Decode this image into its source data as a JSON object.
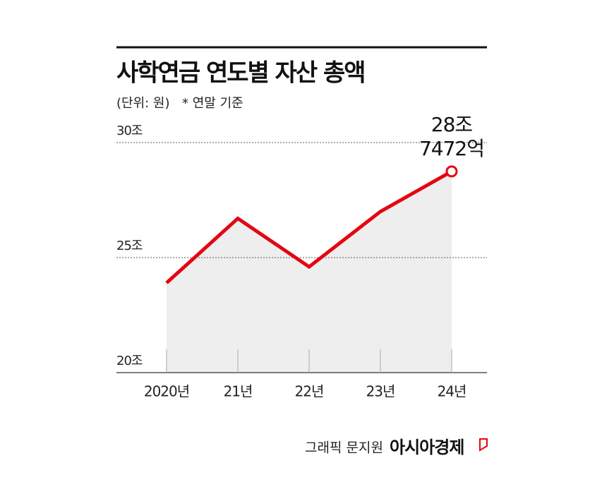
{
  "chart_data": {
    "type": "line",
    "title": "사학연금 연도별 자산 총액",
    "subtitle": "(단위: 원)",
    "note": "* 연말 기준",
    "categories": [
      "2020년",
      "21년",
      "22년",
      "23년",
      "24년"
    ],
    "values": [
      23.9,
      26.7,
      24.6,
      27.0,
      28.7472
    ],
    "value_labels": [
      null,
      null,
      null,
      null,
      "28조\n7472억"
    ],
    "color": "#e30613",
    "area_color": "#eeeeee",
    "ylim": [
      20,
      30
    ],
    "yticks": [
      {
        "value": 20,
        "label": "20조"
      },
      {
        "value": 25,
        "label": "25조"
      },
      {
        "value": 30,
        "label": "30조"
      }
    ],
    "grid": true,
    "credit": "그래픽 문지원",
    "publisher": "아시아경제"
  }
}
